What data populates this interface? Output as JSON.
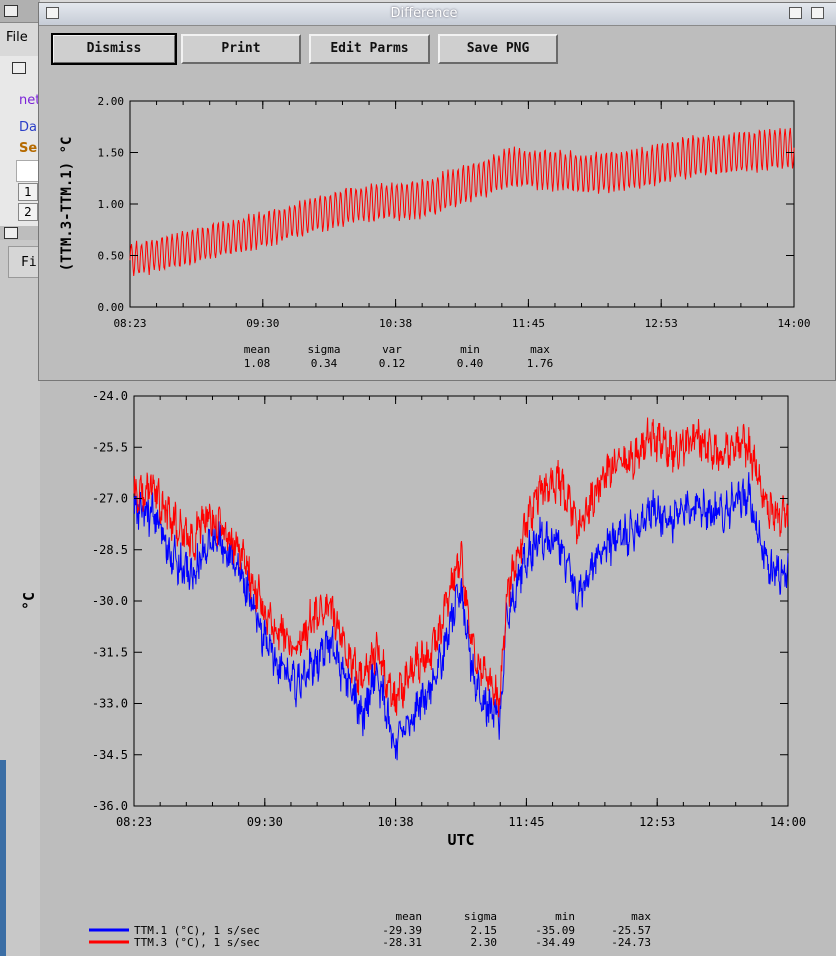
{
  "background": {
    "menu_file": "File",
    "link_net": "net",
    "link_da": "Da",
    "label_se": "Se",
    "row1": "1",
    "row2": "2",
    "menu_fi": "Fi"
  },
  "window": {
    "title": "Difference",
    "buttons": {
      "dismiss": "Dismiss",
      "print": "Print",
      "edit_parms": "Edit Parms",
      "save_png": "Save PNG"
    }
  },
  "colors": {
    "red": "#ff0000",
    "blue": "#0000ff",
    "bg": "#bdbdbd"
  },
  "chart_data": [
    {
      "type": "line",
      "ylabel": "(TTM.3-TTM.1) °C",
      "xlabel": "",
      "ylim": [
        0,
        2
      ],
      "yticks": [
        "0.00",
        "0.50",
        "1.00",
        "1.50",
        "2.00"
      ],
      "xticks": [
        "08:23",
        "09:30",
        "10:38",
        "11:45",
        "12:53",
        "14:00"
      ],
      "series": [
        {
          "color": "#ff0000",
          "x": [
            0,
            10,
            17,
            27,
            34,
            44,
            51,
            57,
            60,
            69,
            78,
            83,
            100
          ],
          "y": [
            0.45,
            0.6,
            0.7,
            0.88,
            1.0,
            1.05,
            1.2,
            1.35,
            1.35,
            1.3,
            1.35,
            1.45,
            1.55
          ]
        }
      ],
      "stats": {
        "headers": [
          "mean",
          "sigma",
          "var",
          "min",
          "max"
        ],
        "values": [
          "1.08",
          "0.34",
          "0.12",
          "0.40",
          "1.76"
        ]
      }
    },
    {
      "type": "line",
      "xlabel": "UTC",
      "ylabel": "°C",
      "ylim": [
        -36,
        -24
      ],
      "yticks": [
        "-24.0",
        "-25.5",
        "-27.0",
        "-28.5",
        "-30.0",
        "-31.5",
        "-33.0",
        "-34.5",
        "-36.0"
      ],
      "xticks": [
        "08:23",
        "09:30",
        "10:38",
        "11:45",
        "12:53",
        "14:00"
      ],
      "series": [
        {
          "name": "TTM.1 (°C), 1 s/sec",
          "color": "#0000ff",
          "x": [
            0,
            3,
            6,
            9,
            11,
            13,
            16,
            20,
            22,
            25,
            27,
            30,
            33,
            35,
            37,
            40,
            43,
            45,
            47,
            49,
            50,
            52,
            54,
            56,
            57,
            60,
            62,
            65,
            68,
            70,
            72,
            76,
            79,
            82,
            86,
            89,
            92,
            94,
            97,
            100
          ],
          "y": [
            -27.3,
            -27.5,
            -28.7,
            -29.3,
            -28.4,
            -28.2,
            -29.0,
            -31.2,
            -31.8,
            -32.5,
            -32.0,
            -31.2,
            -32.6,
            -33.4,
            -32.0,
            -34.3,
            -33.2,
            -32.6,
            -31.8,
            -30.2,
            -29.7,
            -32.4,
            -33.1,
            -33.5,
            -30.4,
            -28.7,
            -28.1,
            -28.3,
            -30.0,
            -29.1,
            -28.4,
            -28.0,
            -27.3,
            -27.7,
            -27.1,
            -27.5,
            -27.1,
            -26.9,
            -29.1,
            -29.2
          ],
          "stats": [
            "-29.39",
            "2.15",
            "-35.09",
            "-25.57"
          ]
        },
        {
          "name": "TTM.3 (°C), 1 s/sec",
          "color": "#ff0000",
          "x": [
            0,
            3,
            6,
            9,
            11,
            13,
            16,
            20,
            22,
            25,
            27,
            30,
            33,
            35,
            37,
            40,
            43,
            45,
            47,
            49,
            50,
            52,
            54,
            56,
            57,
            60,
            62,
            65,
            68,
            70,
            72,
            76,
            79,
            82,
            86,
            89,
            92,
            94,
            97,
            100
          ],
          "y": [
            -26.9,
            -26.7,
            -27.7,
            -28.3,
            -27.4,
            -27.8,
            -28.4,
            -30.3,
            -30.8,
            -31.4,
            -30.6,
            -30.2,
            -31.8,
            -32.4,
            -31.4,
            -33.0,
            -31.8,
            -31.6,
            -30.8,
            -29.2,
            -28.8,
            -31.6,
            -32.2,
            -32.9,
            -29.8,
            -27.7,
            -26.8,
            -26.5,
            -27.9,
            -27.1,
            -26.2,
            -25.9,
            -25.2,
            -25.6,
            -25.2,
            -25.7,
            -25.4,
            -25.5,
            -27.3,
            -27.6
          ],
          "stats": [
            "-28.31",
            "2.30",
            "-34.49",
            "-24.73"
          ]
        }
      ],
      "stats_headers": [
        "mean",
        "sigma",
        "min",
        "max"
      ]
    }
  ]
}
